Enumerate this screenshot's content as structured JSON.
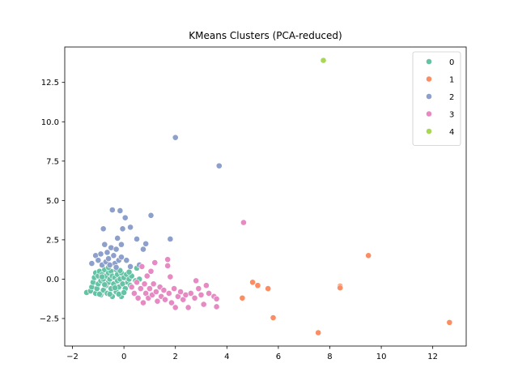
{
  "chart_data": {
    "type": "scatter",
    "title": "KMeans Clusters (PCA-reduced)",
    "xlabel": "",
    "ylabel": "",
    "xlim": [
      -2.3,
      13.3
    ],
    "ylim": [
      -4.25,
      14.75
    ],
    "xticks": [
      -2,
      0,
      2,
      4,
      6,
      8,
      10,
      12
    ],
    "xtick_labels": [
      "−2",
      "0",
      "2",
      "4",
      "6",
      "8",
      "10",
      "12"
    ],
    "yticks": [
      -2.5,
      0.0,
      2.5,
      5.0,
      7.5,
      10.0,
      12.5
    ],
    "ytick_labels": [
      "−2.5",
      "0.0",
      "2.5",
      "5.0",
      "7.5",
      "10.0",
      "12.5"
    ],
    "grid": false,
    "legend_position": "top-right",
    "series": [
      {
        "name": "0",
        "color": "#66c2a5",
        "points": [
          [
            -1.45,
            -0.85
          ],
          [
            -1.3,
            -0.75
          ],
          [
            -1.25,
            -0.5
          ],
          [
            -1.2,
            -0.2
          ],
          [
            -1.15,
            0.1
          ],
          [
            -1.1,
            0.4
          ],
          [
            -1.1,
            -0.9
          ],
          [
            -1.05,
            -0.6
          ],
          [
            -1.0,
            -0.3
          ],
          [
            -1.0,
            0.2
          ],
          [
            -0.95,
            0.5
          ],
          [
            -0.9,
            -1.0
          ],
          [
            -0.9,
            -0.1
          ],
          [
            -0.85,
            0.3
          ],
          [
            -0.8,
            -0.7
          ],
          [
            -0.8,
            0.0
          ],
          [
            -0.75,
            0.6
          ],
          [
            -0.7,
            -0.4
          ],
          [
            -0.7,
            0.2
          ],
          [
            -0.65,
            -0.9
          ],
          [
            -0.6,
            0.4
          ],
          [
            -0.6,
            -0.2
          ],
          [
            -0.55,
            0.0
          ],
          [
            -0.5,
            -0.6
          ],
          [
            -0.5,
            0.5
          ],
          [
            -0.45,
            -1.1
          ],
          [
            -0.45,
            0.2
          ],
          [
            -0.4,
            -0.3
          ],
          [
            -0.35,
            0.1
          ],
          [
            -0.3,
            -0.8
          ],
          [
            -0.3,
            0.6
          ],
          [
            -0.25,
            -0.1
          ],
          [
            -0.25,
            0.3
          ],
          [
            -0.2,
            -0.5
          ],
          [
            -0.15,
            0.0
          ],
          [
            -0.1,
            -1.1
          ],
          [
            -0.1,
            0.4
          ],
          [
            -0.05,
            -0.3
          ],
          [
            0.0,
            0.1
          ],
          [
            0.05,
            -0.6
          ],
          [
            0.1,
            0.3
          ],
          [
            0.15,
            -0.2
          ],
          [
            0.2,
            0.0
          ],
          [
            0.25,
            -0.4
          ],
          [
            0.3,
            0.2
          ],
          [
            0.45,
            -0.1
          ],
          [
            0.5,
            0.7
          ],
          [
            0.6,
            0.0
          ],
          [
            -0.95,
            -0.95
          ],
          [
            -0.55,
            -0.95
          ],
          [
            -0.2,
            -0.95
          ],
          [
            0.0,
            -0.85
          ],
          [
            -0.35,
            -0.55
          ],
          [
            -0.75,
            -0.35
          ],
          [
            -0.85,
            0.15
          ],
          [
            -0.15,
            0.55
          ],
          [
            0.2,
            0.45
          ],
          [
            -0.6,
            0.75
          ]
        ]
      },
      {
        "name": "1",
        "color": "#fc8d62",
        "points": [
          [
            4.6,
            -1.2
          ],
          [
            5.0,
            -0.2
          ],
          [
            5.2,
            -0.4
          ],
          [
            5.6,
            -0.6
          ],
          [
            5.8,
            -2.45
          ],
          [
            7.55,
            -3.4
          ],
          [
            8.4,
            -0.45
          ],
          [
            8.4,
            -0.55
          ],
          [
            9.5,
            1.5
          ],
          [
            12.65,
            -2.75
          ]
        ]
      },
      {
        "name": "2",
        "color": "#8da0cb",
        "points": [
          [
            -1.25,
            1.0
          ],
          [
            -1.1,
            1.5
          ],
          [
            -1.0,
            1.2
          ],
          [
            -0.9,
            1.6
          ],
          [
            -0.85,
            0.9
          ],
          [
            -0.8,
            3.2
          ],
          [
            -0.75,
            2.2
          ],
          [
            -0.7,
            1.1
          ],
          [
            -0.65,
            1.7
          ],
          [
            -0.6,
            1.3
          ],
          [
            -0.5,
            2.0
          ],
          [
            -0.45,
            4.4
          ],
          [
            -0.4,
            1.5
          ],
          [
            -0.35,
            1.0
          ],
          [
            -0.3,
            1.9
          ],
          [
            -0.25,
            2.6
          ],
          [
            -0.2,
            1.2
          ],
          [
            -0.15,
            4.35
          ],
          [
            -0.1,
            2.2
          ],
          [
            -0.1,
            1.4
          ],
          [
            -0.05,
            3.2
          ],
          [
            0.05,
            3.9
          ],
          [
            0.1,
            1.2
          ],
          [
            0.25,
            3.3
          ],
          [
            0.25,
            0.8
          ],
          [
            0.5,
            2.55
          ],
          [
            0.6,
            0.9
          ],
          [
            0.75,
            1.9
          ],
          [
            0.85,
            2.25
          ],
          [
            1.05,
            4.05
          ],
          [
            1.8,
            2.55
          ],
          [
            2.0,
            9.0
          ],
          [
            3.7,
            7.2
          ],
          [
            -0.55,
            0.9
          ],
          [
            -0.3,
            0.75
          ]
        ]
      },
      {
        "name": "3",
        "color": "#e78ac3",
        "points": [
          [
            0.3,
            -0.5
          ],
          [
            0.4,
            -0.9
          ],
          [
            0.5,
            -0.2
          ],
          [
            0.55,
            -1.2
          ],
          [
            0.65,
            -0.6
          ],
          [
            0.7,
            0.8
          ],
          [
            0.75,
            -1.5
          ],
          [
            0.8,
            -0.3
          ],
          [
            0.85,
            -0.9
          ],
          [
            0.9,
            0.2
          ],
          [
            0.95,
            -1.2
          ],
          [
            1.0,
            -0.6
          ],
          [
            1.05,
            0.5
          ],
          [
            1.1,
            -1.0
          ],
          [
            1.15,
            -0.3
          ],
          [
            1.2,
            1.05
          ],
          [
            1.25,
            -0.8
          ],
          [
            1.3,
            -1.4
          ],
          [
            1.4,
            -0.5
          ],
          [
            1.45,
            -1.1
          ],
          [
            1.55,
            -0.7
          ],
          [
            1.6,
            -1.3
          ],
          [
            1.7,
            1.25
          ],
          [
            1.7,
            0.85
          ],
          [
            1.75,
            -0.9
          ],
          [
            1.8,
            0.15
          ],
          [
            1.85,
            -1.5
          ],
          [
            1.95,
            -0.6
          ],
          [
            2.0,
            -1.8
          ],
          [
            2.1,
            -1.1
          ],
          [
            2.2,
            -0.8
          ],
          [
            2.3,
            -1.3
          ],
          [
            2.4,
            -1.0
          ],
          [
            2.5,
            -1.8
          ],
          [
            2.6,
            -0.9
          ],
          [
            2.75,
            -1.2
          ],
          [
            2.8,
            -0.1
          ],
          [
            2.9,
            -0.6
          ],
          [
            3.0,
            -1.0
          ],
          [
            3.1,
            -1.6
          ],
          [
            3.2,
            -0.4
          ],
          [
            3.3,
            -0.9
          ],
          [
            3.5,
            -1.1
          ],
          [
            3.6,
            -1.75
          ],
          [
            3.6,
            -1.25
          ],
          [
            4.65,
            3.6
          ]
        ]
      },
      {
        "name": "4",
        "color": "#a6d854",
        "points": [
          [
            7.75,
            13.9
          ]
        ]
      }
    ]
  }
}
